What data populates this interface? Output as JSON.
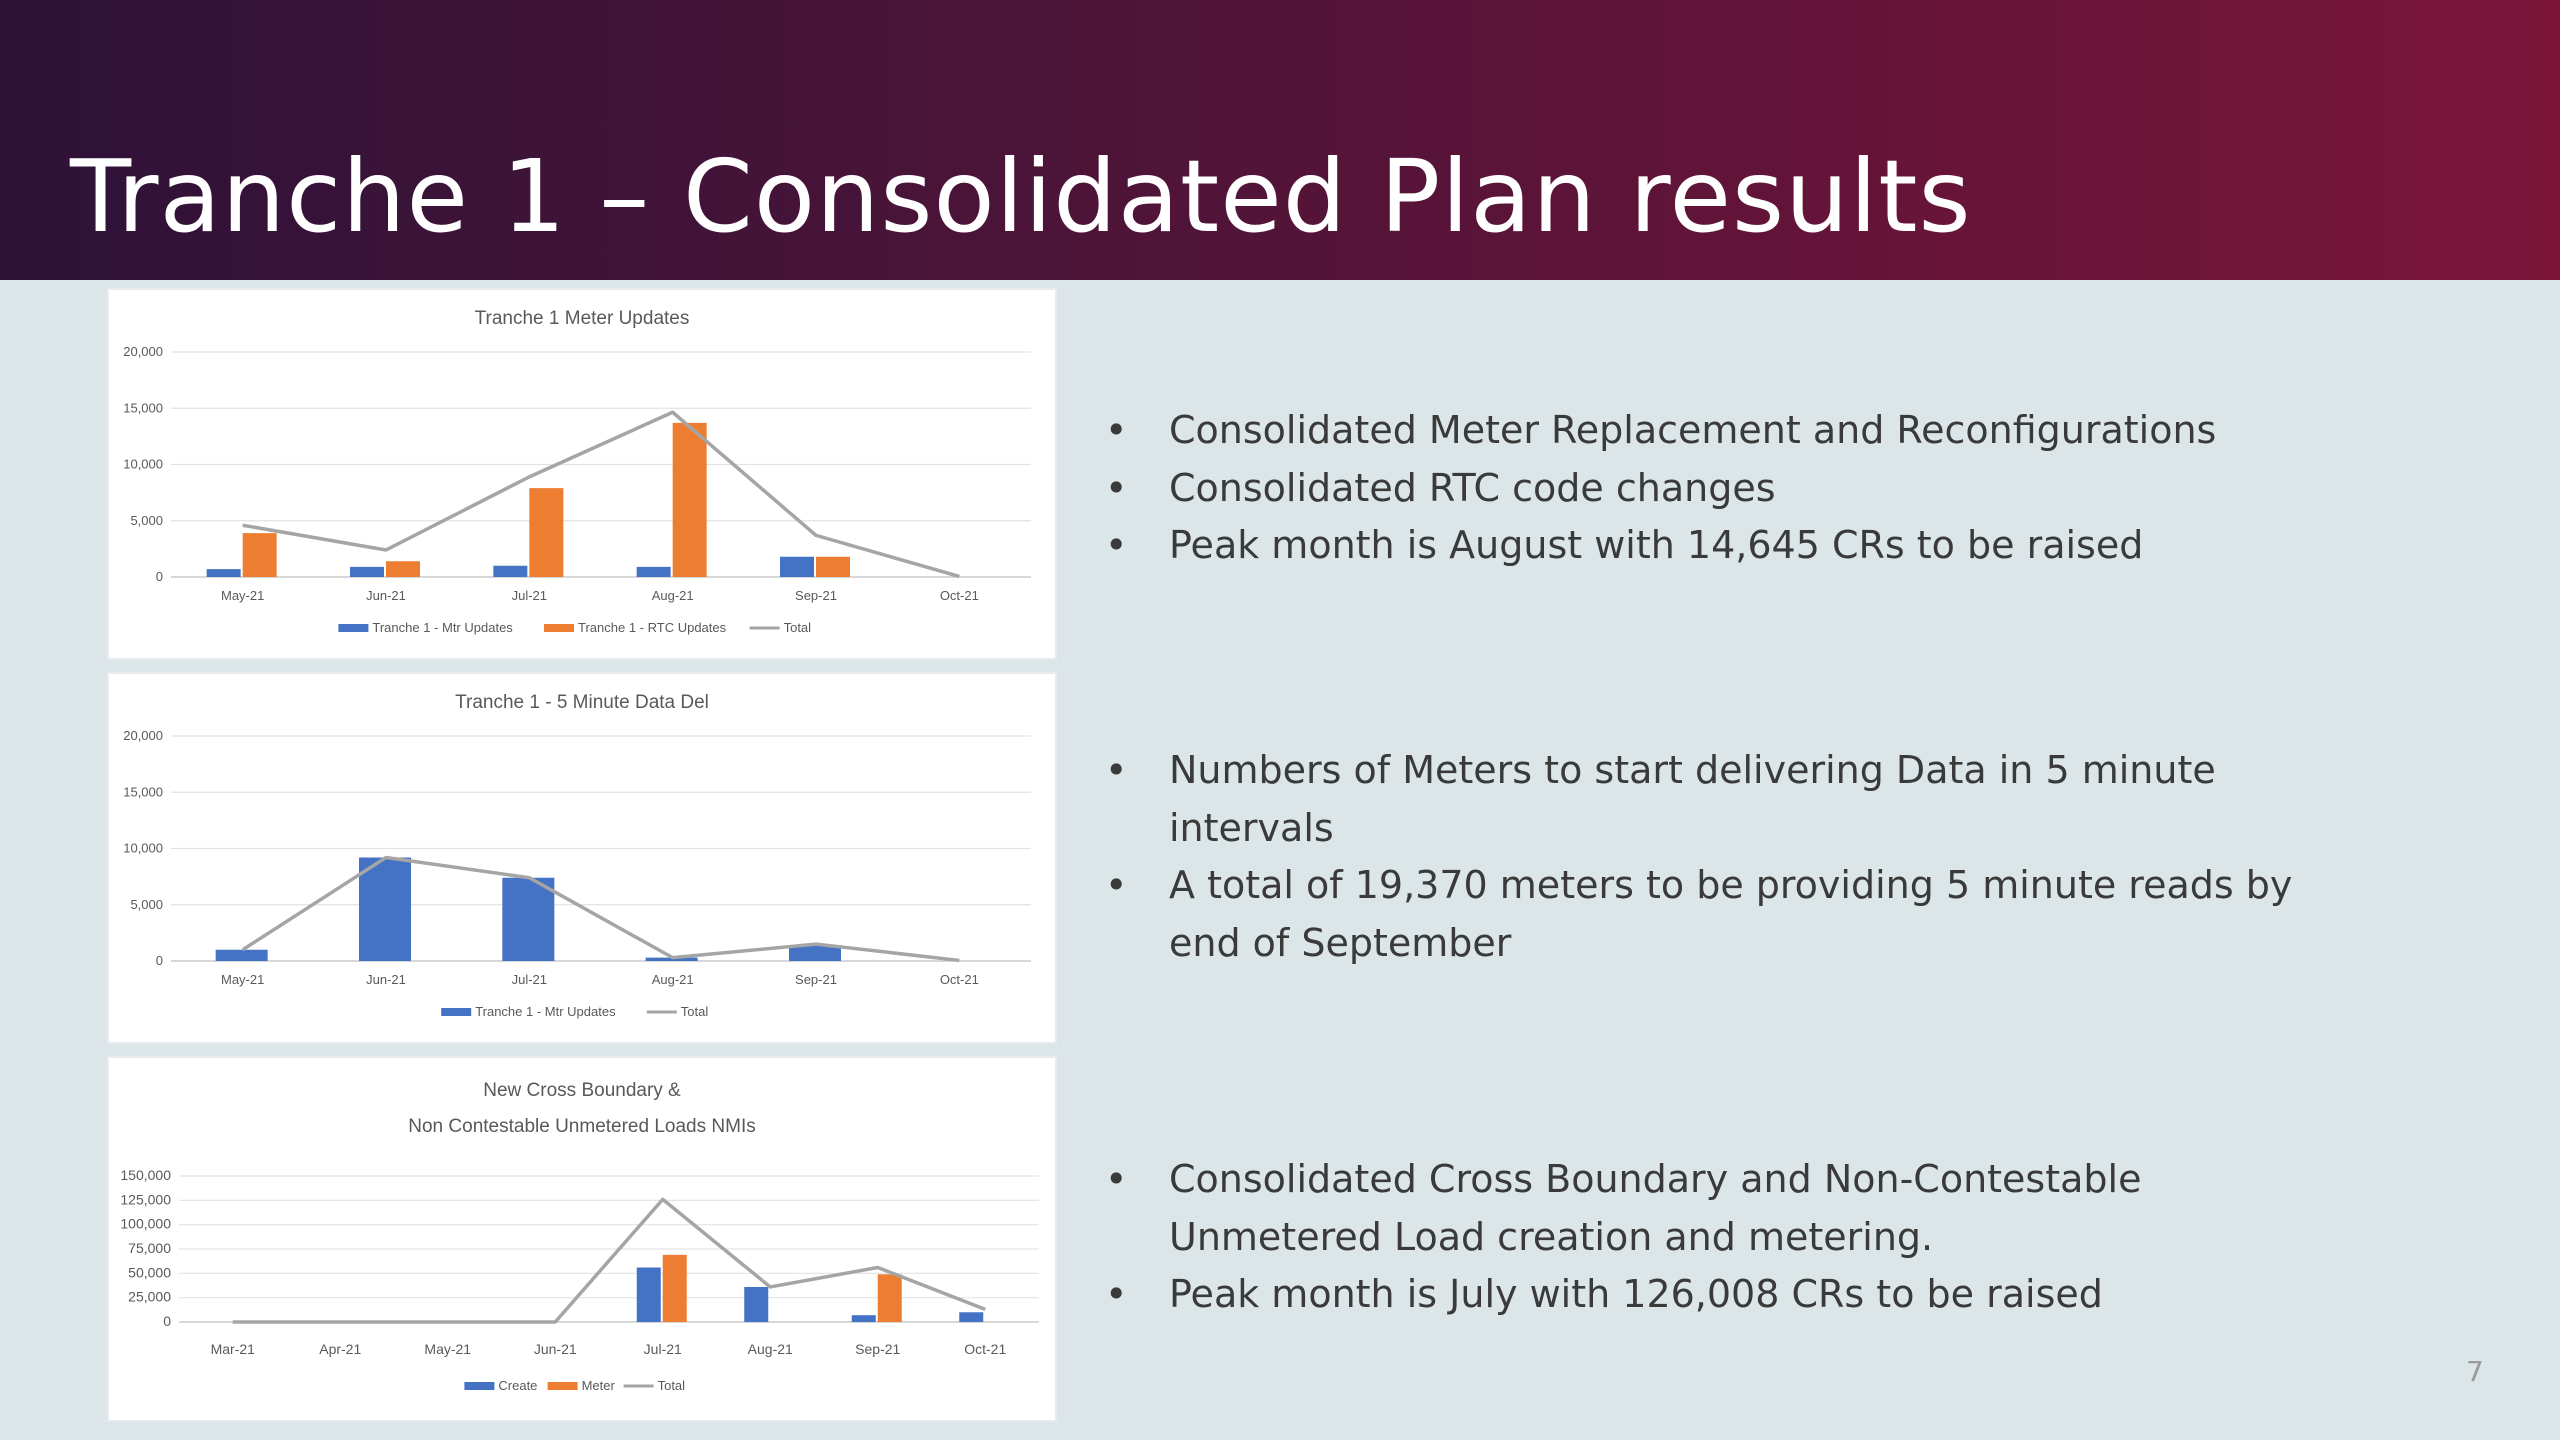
{
  "slide": {
    "title": "Tranche 1 – Consolidated Plan results",
    "page_number": "7",
    "colors": {
      "header_start": "#2e1238",
      "header_end": "#7a1538",
      "background": "#dce6e8",
      "blue": "#4472c4",
      "orange": "#ed7d31",
      "total_line": "#a5a5a5"
    }
  },
  "bullets": {
    "group1": [
      "Consolidated Meter Replacement and Reconfigurations",
      "Consolidated RTC code changes",
      "Peak month is August with 14,645 CRs to be raised"
    ],
    "group2": [
      "Numbers of Meters to start delivering Data in 5 minute intervals",
      "A total of 19,370 meters to be providing 5 minute reads by end of September"
    ],
    "group3": [
      "Consolidated Cross Boundary and Non-Contestable Unmetered Load creation and metering.",
      "Peak month is July with 126,008 CRs to be raised"
    ]
  },
  "chart_data": [
    {
      "type": "bar",
      "title": [
        "Tranche 1 Meter Updates"
      ],
      "categories": [
        "May-21",
        "Jun-21",
        "Jul-21",
        "Aug-21",
        "Sep-21",
        "Oct-21"
      ],
      "ylim": [
        0,
        20000
      ],
      "yticks": [
        0,
        5000,
        10000,
        15000,
        20000
      ],
      "ytick_labels": [
        "0",
        "5,000",
        "10,000",
        "15,000",
        "20,000"
      ],
      "grid": true,
      "legend_position": "bottom",
      "series": [
        {
          "name": "Tranche 1 - Mtr Updates",
          "kind": "bar",
          "color": "#4472c4",
          "values": [
            700,
            900,
            1000,
            900,
            1800,
            0
          ]
        },
        {
          "name": "Tranche 1 - RTC Updates",
          "kind": "bar",
          "color": "#ed7d31",
          "values": [
            3900,
            1400,
            7900,
            13700,
            1800,
            0
          ]
        },
        {
          "name": "Total",
          "kind": "line",
          "color": "#a5a5a5",
          "values": [
            4600,
            2400,
            8900,
            14645,
            3700,
            50
          ]
        }
      ]
    },
    {
      "type": "bar",
      "title": [
        "Tranche 1 - 5 Minute Data Del"
      ],
      "categories": [
        "May-21",
        "Jun-21",
        "Jul-21",
        "Aug-21",
        "Sep-21",
        "Oct-21"
      ],
      "ylim": [
        0,
        20000
      ],
      "yticks": [
        0,
        5000,
        10000,
        15000,
        20000
      ],
      "ytick_labels": [
        "0",
        "5,000",
        "10,000",
        "15,000",
        "20,000"
      ],
      "grid": true,
      "legend_position": "bottom",
      "series": [
        {
          "name": "Tranche 1 - Mtr Updates",
          "kind": "bar",
          "color": "#4472c4",
          "values": [
            1000,
            9200,
            7400,
            300,
            1400,
            0
          ]
        },
        {
          "name": "Total",
          "kind": "line",
          "color": "#a5a5a5",
          "values": [
            1000,
            9200,
            7400,
            300,
            1500,
            50
          ]
        }
      ]
    },
    {
      "type": "bar",
      "title": [
        "New Cross Boundary  &",
        "Non Contestable Unmetered Loads NMIs"
      ],
      "categories": [
        "Mar-21",
        "Apr-21",
        "May-21",
        "Jun-21",
        "Jul-21",
        "Aug-21",
        "Sep-21",
        "Oct-21"
      ],
      "ylim": [
        0,
        150000
      ],
      "yticks": [
        0,
        25000,
        50000,
        75000,
        100000,
        125000,
        150000
      ],
      "ytick_labels": [
        "0",
        "25,000",
        "50,000",
        "75,000",
        "100,000",
        "125,000",
        "150,000"
      ],
      "grid": true,
      "legend_position": "bottom",
      "series": [
        {
          "name": "Create",
          "kind": "bar",
          "color": "#4472c4",
          "values": [
            0,
            0,
            0,
            0,
            56000,
            36000,
            7000,
            10000
          ]
        },
        {
          "name": "Meter",
          "kind": "bar",
          "color": "#ed7d31",
          "values": [
            0,
            0,
            0,
            0,
            69000,
            0,
            49000,
            0
          ]
        },
        {
          "name": "Total",
          "kind": "line",
          "color": "#a5a5a5",
          "values": [
            0,
            0,
            0,
            0,
            126008,
            36000,
            56000,
            13000
          ]
        }
      ]
    }
  ]
}
